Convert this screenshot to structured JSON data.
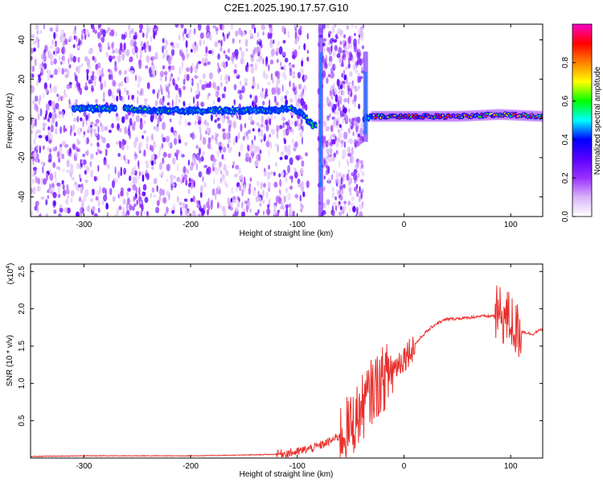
{
  "chart_data": [
    {
      "type": "heatmap",
      "title": "C2E1.2025.190.17.57.G10",
      "xlabel": "Height of straight line (km)",
      "ylabel": "Frequency (Hz)",
      "xlim": [
        -350,
        130
      ],
      "ylim": [
        -50,
        48
      ],
      "xticks": [
        -300,
        -200,
        -100,
        0,
        100
      ],
      "yticks": [
        -40,
        -20,
        0,
        20,
        40
      ],
      "colorbar": {
        "label": "Normalized spectral amplitude",
        "range": [
          0,
          1
        ],
        "ticks": [
          "0.0",
          "0.2",
          "0.4",
          "0.6",
          "0.8"
        ],
        "colors": [
          "#ffffff",
          "#d8b4f8",
          "#9b30ff",
          "#5a00ff",
          "#0000ff",
          "#00ffff",
          "#00ff00",
          "#ffff00",
          "#ff8000",
          "#ff0000",
          "#ff00c8"
        ]
      },
      "ridge": [
        {
          "x": -310,
          "y": 5
        },
        {
          "x": -300,
          "y": 5
        },
        {
          "x": -260,
          "y": 5
        },
        {
          "x": -240,
          "y": 4
        },
        {
          "x": -200,
          "y": 4
        },
        {
          "x": -150,
          "y": 4
        },
        {
          "x": -120,
          "y": 4
        },
        {
          "x": -105,
          "y": 5
        },
        {
          "x": -95,
          "y": 2
        },
        {
          "x": -85,
          "y": -4
        },
        {
          "x": -30,
          "y": 1
        },
        {
          "x": 0,
          "y": 1
        },
        {
          "x": 50,
          "y": 1
        },
        {
          "x": 90,
          "y": 2
        },
        {
          "x": 130,
          "y": 1
        }
      ],
      "noise_bands": [
        [
          -350,
          -90
        ],
        [
          -80,
          -38
        ]
      ],
      "vertical_streaks": [
        {
          "x": -78,
          "y": [
            -50,
            48
          ]
        },
        {
          "x": -36,
          "y": [
            -12,
            34
          ]
        }
      ]
    },
    {
      "type": "line",
      "title": "",
      "xlabel": "Height of straight line (km)",
      "ylabel": "SNR (10 * v/v)",
      "y_multiplier": "(x10",
      "y_multiplier_exp": "4",
      "xlim": [
        -350,
        130
      ],
      "ylim": [
        0,
        2.6
      ],
      "xticks": [
        -300,
        -200,
        -100,
        0,
        100
      ],
      "yticks": [
        "0.5",
        "1.0",
        "1.5",
        "2.0",
        "2.5"
      ],
      "color": "#e8302c",
      "series": [
        {
          "x": [
            -350,
            -300,
            -250,
            -200,
            -150,
            -120,
            -100,
            -90,
            -80,
            -70,
            -60,
            -50,
            -40,
            -30,
            -20,
            -10,
            0,
            10,
            20,
            30,
            40,
            50,
            60,
            70,
            80,
            90,
            100,
            105,
            110,
            120,
            130
          ],
          "y": [
            0.02,
            0.03,
            0.03,
            0.03,
            0.04,
            0.05,
            0.08,
            0.12,
            0.16,
            0.22,
            0.3,
            0.42,
            0.65,
            0.9,
            1.05,
            1.2,
            1.35,
            1.52,
            1.68,
            1.8,
            1.86,
            1.87,
            1.88,
            1.9,
            1.9,
            1.92,
            1.85,
            1.7,
            1.7,
            1.66,
            1.73
          ]
        }
      ]
    }
  ]
}
